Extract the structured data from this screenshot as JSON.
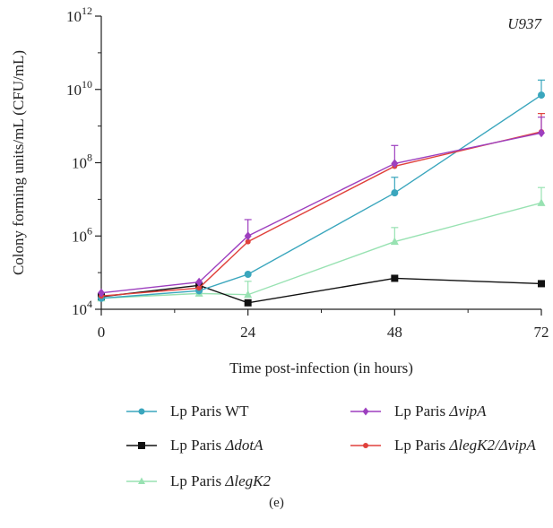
{
  "chart_data": {
    "type": "line",
    "title": "U937",
    "xlabel": "Time post-infection (in hours)",
    "ylabel": "Colony forming units/mL (CFU/mL)",
    "xlim": [
      0,
      72
    ],
    "xticks": [
      0,
      24,
      48,
      72
    ],
    "ylim": [
      10000,
      1000000000000
    ],
    "yscale": "log",
    "yticks": [
      {
        "value": 10000,
        "base": "10",
        "exp": "4"
      },
      {
        "value": 1000000,
        "base": "10",
        "exp": "6"
      },
      {
        "value": 100000000,
        "base": "10",
        "exp": "8"
      },
      {
        "value": 10000000000,
        "base": "10",
        "exp": "10"
      },
      {
        "value": 1000000000000,
        "base": "10",
        "exp": "12"
      }
    ],
    "grid": false,
    "legend_position": "bottom",
    "series": [
      {
        "name": "Lp Paris WT",
        "name_plain": "Lp Paris WT",
        "name_italic": "",
        "color": "#3aa6bd",
        "marker": "circle",
        "x": [
          0,
          16,
          24,
          48,
          72
        ],
        "y": [
          20000,
          32000,
          90000,
          15000000,
          7000000000
        ],
        "err": [
          0,
          0,
          0,
          25000000,
          11000000000
        ]
      },
      {
        "name": "Lp Paris ΔdotA",
        "name_plain": "Lp Paris ",
        "name_italic": "ΔdotA",
        "color": "#111111",
        "marker": "square",
        "x": [
          0,
          16,
          24,
          48,
          72
        ],
        "y": [
          22000,
          45000,
          15000,
          70000,
          50000
        ],
        "err": [
          0,
          0,
          0,
          0,
          0
        ]
      },
      {
        "name": "Lp Paris ΔlegK2",
        "name_plain": "Lp Paris ",
        "name_italic": "ΔlegK2",
        "color": "#98e2b2",
        "marker": "triangle",
        "x": [
          0,
          16,
          24,
          48,
          72
        ],
        "y": [
          20000,
          27000,
          25000,
          700000,
          8000000
        ],
        "err": [
          0,
          0,
          33000,
          1000000,
          13000000
        ]
      },
      {
        "name": "Lp Paris ΔvipA",
        "name_plain": "Lp Paris ",
        "name_italic": "ΔvipA",
        "color": "#9d3fbf",
        "marker": "diamond",
        "x": [
          0,
          16,
          24,
          48,
          72
        ],
        "y": [
          28000,
          55000,
          1000000,
          95000000,
          650000000
        ],
        "err": [
          0,
          0,
          1800000,
          200000000,
          1100000000
        ]
      },
      {
        "name": "Lp Paris ΔlegK2/ΔvipA",
        "name_plain": "Lp Paris ",
        "name_italic": "ΔlegK2/ΔvipA",
        "color": "#e0413b",
        "marker": "dot",
        "x": [
          0,
          16,
          24,
          48,
          72
        ],
        "y": [
          23000,
          38000,
          700000,
          80000000,
          700000000
        ],
        "err": [
          0,
          0,
          0,
          0,
          1500000000
        ]
      }
    ]
  },
  "panel_label": "(e)"
}
